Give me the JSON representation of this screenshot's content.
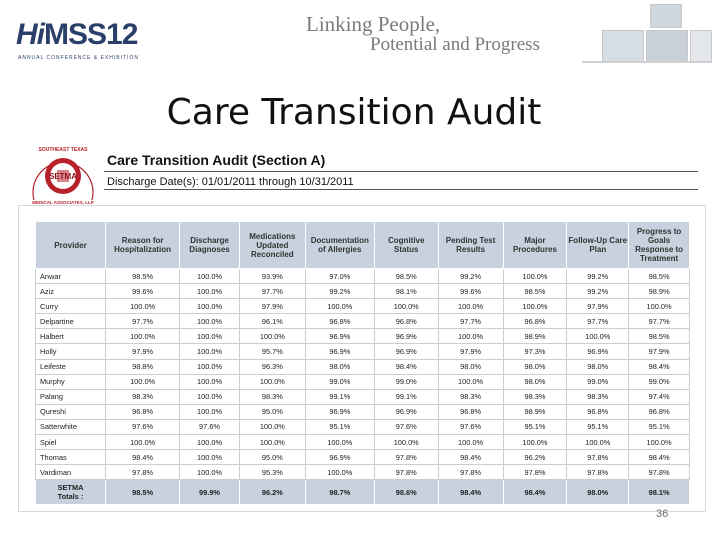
{
  "header": {
    "logo_brand": "HiMSS12",
    "logo_hi": "Hi",
    "logo_ms": "MSS",
    "logo_year": "12",
    "logo_sub": "ANNUAL CONFERENCE & EXHIBITION",
    "tagline_line1": "Linking People,",
    "tagline_line2": "Potential and Progress"
  },
  "slide": {
    "title": "Care Transition Audit",
    "page_number": "36"
  },
  "seal": {
    "text_top": "SOUTHEAST TEXAS",
    "text_center": "SETMA",
    "text_bottom": "MEDICAL ASSOCIATES, LLP"
  },
  "report": {
    "title": "Care Transition Audit (Section A)",
    "discharge_label": "Discharge Date(s):",
    "discharge_range": "01/01/2011 through 10/31/2011"
  },
  "table": {
    "headers": [
      "Provider",
      "Reason for Hospitalization",
      "Discharge Diagnoses",
      "Medications Updated Reconciled",
      "Documentation of Allergies",
      "Cognitive Status",
      "Pending Test Results",
      "Major Procedures",
      "Follow-Up Care Plan",
      "Progress to Goals Response to Treatment"
    ],
    "rows": [
      [
        "Anwar",
        "98.5%",
        "100.0%",
        "93.9%",
        "97.0%",
        "98.5%",
        "99.2%",
        "100.0%",
        "99.2%",
        "98.5%"
      ],
      [
        "Aziz",
        "99.6%",
        "100.0%",
        "97.7%",
        "99.2%",
        "98.1%",
        "99.6%",
        "98.5%",
        "99.2%",
        "98.9%"
      ],
      [
        "Curry",
        "100.0%",
        "100.0%",
        "97.9%",
        "100.0%",
        "100.0%",
        "100.0%",
        "100.0%",
        "97.9%",
        "100.0%"
      ],
      [
        "Delpartine",
        "97.7%",
        "100.0%",
        "96.1%",
        "96.8%",
        "96.8%",
        "97.7%",
        "96.8%",
        "97.7%",
        "97.7%"
      ],
      [
        "Halbert",
        "100.0%",
        "100.0%",
        "100.0%",
        "96.9%",
        "96.9%",
        "100.0%",
        "98.9%",
        "100.0%",
        "98.5%"
      ],
      [
        "Holly",
        "97.9%",
        "100.0%",
        "95.7%",
        "96.9%",
        "96.9%",
        "97.9%",
        "97.3%",
        "96.9%",
        "97.9%"
      ],
      [
        "Leifeste",
        "98.8%",
        "100.0%",
        "96.3%",
        "98.0%",
        "98.4%",
        "98.0%",
        "98.0%",
        "98.0%",
        "98.4%"
      ],
      [
        "Murphy",
        "100.0%",
        "100.0%",
        "100.0%",
        "99.0%",
        "99.0%",
        "100.0%",
        "98.0%",
        "99.0%",
        "99.0%"
      ],
      [
        "Palang",
        "98.3%",
        "100.0%",
        "98.3%",
        "99.1%",
        "99.1%",
        "98.3%",
        "98.3%",
        "98.3%",
        "97.4%"
      ],
      [
        "Qureshi",
        "96.8%",
        "100.0%",
        "95.0%",
        "96.9%",
        "96.9%",
        "96.8%",
        "98.9%",
        "96.8%",
        "96.8%"
      ],
      [
        "Satterwhite",
        "97.6%",
        "97.6%",
        "100.0%",
        "95.1%",
        "97.6%",
        "97.6%",
        "95.1%",
        "95.1%",
        "95.1%"
      ],
      [
        "Spiel",
        "100.0%",
        "100.0%",
        "100.0%",
        "100.0%",
        "100.0%",
        "100.0%",
        "100.0%",
        "100.0%",
        "100.0%"
      ],
      [
        "Thomas",
        "98.4%",
        "100.0%",
        "95.0%",
        "96.9%",
        "97.8%",
        "98.4%",
        "96.2%",
        "97.8%",
        "98.4%"
      ],
      [
        "Vardiman",
        "97.8%",
        "100.0%",
        "95.3%",
        "100.0%",
        "97.8%",
        "97.8%",
        "97.8%",
        "97.8%",
        "97.8%"
      ]
    ],
    "total_row": {
      "label_line1": "SETMA",
      "label_line2": "Totals :",
      "values": [
        "98.5%",
        "99.9%",
        "96.2%",
        "98.7%",
        "98.6%",
        "98.4%",
        "98.4%",
        "98.0%",
        "98.1%"
      ]
    }
  },
  "colors": {
    "header_fill": "#c7d2de",
    "logo_color": "#2b3f6b",
    "seal_red": "#b8202a",
    "tagline_gray": "#7a7a7a"
  }
}
